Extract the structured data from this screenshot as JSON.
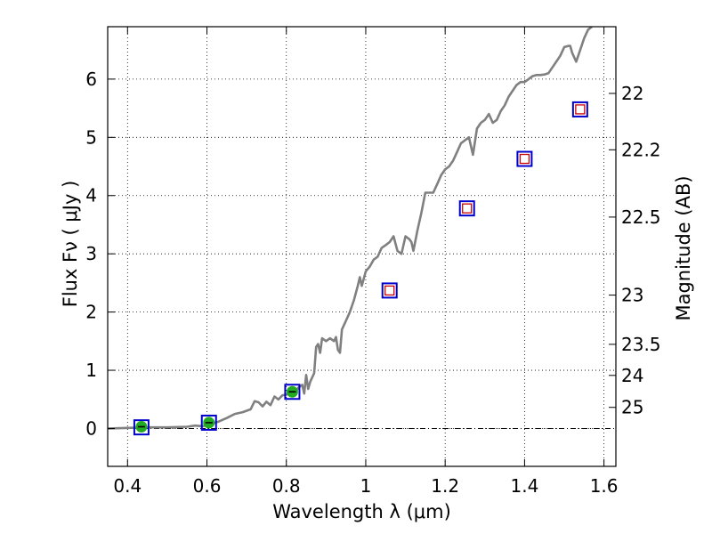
{
  "chart_data": {
    "type": "line",
    "title": "",
    "xlabel": "Wavelength  λ (μm)",
    "ylabel": "Flux  Fν  ( μJy )",
    "y2label": "Magnitude (AB)",
    "xlim": [
      0.35,
      1.63
    ],
    "ylim": [
      -0.65,
      6.9
    ],
    "grid": true,
    "x_ticks": [
      {
        "value": 0.4,
        "label": "0.4"
      },
      {
        "value": 0.6,
        "label": "0.6"
      },
      {
        "value": 0.8,
        "label": "0.8"
      },
      {
        "value": 1.0,
        "label": "1"
      },
      {
        "value": 1.2,
        "label": "1.2"
      },
      {
        "value": 1.4,
        "label": "1.4"
      },
      {
        "value": 1.6,
        "label": "1.6"
      }
    ],
    "y_ticks": [
      {
        "value": 0,
        "label": "0"
      },
      {
        "value": 1,
        "label": "1"
      },
      {
        "value": 2,
        "label": "2"
      },
      {
        "value": 3,
        "label": "3"
      },
      {
        "value": 4,
        "label": "4"
      },
      {
        "value": 5,
        "label": "5"
      },
      {
        "value": 6,
        "label": "6"
      }
    ],
    "y2_ticks": [
      {
        "value": 22,
        "label": "22"
      },
      {
        "value": 22.2,
        "label": "22.2"
      },
      {
        "value": 22.5,
        "label": "22.5"
      },
      {
        "value": 23,
        "label": "23"
      },
      {
        "value": 23.5,
        "label": "23.5"
      },
      {
        "value": 24,
        "label": "24"
      },
      {
        "value": 25,
        "label": "25"
      }
    ],
    "series": [
      {
        "kind": "spectrum",
        "color": "#808080",
        "points": [
          [
            0.35,
            0.0
          ],
          [
            0.4,
            0.01
          ],
          [
            0.45,
            0.02
          ],
          [
            0.5,
            0.02
          ],
          [
            0.55,
            0.03
          ],
          [
            0.57,
            0.05
          ],
          [
            0.59,
            0.04
          ],
          [
            0.61,
            0.08
          ],
          [
            0.63,
            0.12
          ],
          [
            0.65,
            0.18
          ],
          [
            0.67,
            0.25
          ],
          [
            0.69,
            0.28
          ],
          [
            0.71,
            0.33
          ],
          [
            0.72,
            0.47
          ],
          [
            0.73,
            0.45
          ],
          [
            0.74,
            0.38
          ],
          [
            0.75,
            0.46
          ],
          [
            0.76,
            0.4
          ],
          [
            0.77,
            0.55
          ],
          [
            0.78,
            0.5
          ],
          [
            0.79,
            0.57
          ],
          [
            0.8,
            0.58
          ],
          [
            0.81,
            0.62
          ],
          [
            0.82,
            0.6
          ],
          [
            0.83,
            0.7
          ],
          [
            0.84,
            0.75
          ],
          [
            0.845,
            0.6
          ],
          [
            0.85,
            0.92
          ],
          [
            0.855,
            0.68
          ],
          [
            0.86,
            0.8
          ],
          [
            0.87,
            0.95
          ],
          [
            0.875,
            1.4
          ],
          [
            0.88,
            1.45
          ],
          [
            0.885,
            1.3
          ],
          [
            0.89,
            1.55
          ],
          [
            0.9,
            1.5
          ],
          [
            0.91,
            1.55
          ],
          [
            0.92,
            1.5
          ],
          [
            0.925,
            1.57
          ],
          [
            0.93,
            1.35
          ],
          [
            0.935,
            1.3
          ],
          [
            0.94,
            1.7
          ],
          [
            0.95,
            1.85
          ],
          [
            0.96,
            2.0
          ],
          [
            0.97,
            2.2
          ],
          [
            0.98,
            2.45
          ],
          [
            0.985,
            2.6
          ],
          [
            0.99,
            2.45
          ],
          [
            1.0,
            2.7
          ],
          [
            1.01,
            2.78
          ],
          [
            1.02,
            2.9
          ],
          [
            1.03,
            2.95
          ],
          [
            1.04,
            3.1
          ],
          [
            1.05,
            3.15
          ],
          [
            1.06,
            3.2
          ],
          [
            1.07,
            3.3
          ],
          [
            1.08,
            3.05
          ],
          [
            1.09,
            3.0
          ],
          [
            1.1,
            3.3
          ],
          [
            1.11,
            3.25
          ],
          [
            1.115,
            3.2
          ],
          [
            1.12,
            3.05
          ],
          [
            1.13,
            3.4
          ],
          [
            1.14,
            3.7
          ],
          [
            1.15,
            4.05
          ],
          [
            1.16,
            4.05
          ],
          [
            1.17,
            4.05
          ],
          [
            1.18,
            4.2
          ],
          [
            1.19,
            4.35
          ],
          [
            1.2,
            4.45
          ],
          [
            1.21,
            4.5
          ],
          [
            1.22,
            4.6
          ],
          [
            1.23,
            4.75
          ],
          [
            1.24,
            4.9
          ],
          [
            1.25,
            4.95
          ],
          [
            1.26,
            5.0
          ],
          [
            1.27,
            4.7
          ],
          [
            1.28,
            5.15
          ],
          [
            1.29,
            5.25
          ],
          [
            1.3,
            5.3
          ],
          [
            1.31,
            5.4
          ],
          [
            1.32,
            5.25
          ],
          [
            1.33,
            5.3
          ],
          [
            1.34,
            5.45
          ],
          [
            1.35,
            5.55
          ],
          [
            1.36,
            5.7
          ],
          [
            1.37,
            5.8
          ],
          [
            1.38,
            5.9
          ],
          [
            1.39,
            5.95
          ],
          [
            1.4,
            5.95
          ],
          [
            1.41,
            6.0
          ],
          [
            1.42,
            6.05
          ],
          [
            1.43,
            6.07
          ],
          [
            1.44,
            6.07
          ],
          [
            1.45,
            6.08
          ],
          [
            1.46,
            6.1
          ],
          [
            1.47,
            6.2
          ],
          [
            1.48,
            6.3
          ],
          [
            1.49,
            6.4
          ],
          [
            1.5,
            6.55
          ],
          [
            1.51,
            6.57
          ],
          [
            1.515,
            6.57
          ],
          [
            1.52,
            6.45
          ],
          [
            1.53,
            6.3
          ],
          [
            1.54,
            6.5
          ],
          [
            1.55,
            6.7
          ],
          [
            1.56,
            6.85
          ],
          [
            1.57,
            6.95
          ]
        ]
      },
      {
        "kind": "model_photometry",
        "marker": "open-square",
        "color": "#0000cc",
        "points": [
          [
            0.435,
            0.02
          ],
          [
            0.605,
            0.1
          ],
          [
            0.815,
            0.63
          ],
          [
            1.06,
            2.37
          ],
          [
            1.255,
            3.78
          ],
          [
            1.4,
            4.63
          ],
          [
            1.54,
            5.48
          ]
        ]
      },
      {
        "kind": "model_photometry_inner",
        "marker": "open-square-small",
        "color": "#cc0000",
        "points": [
          [
            1.06,
            2.37
          ],
          [
            1.255,
            3.78
          ],
          [
            1.4,
            4.63
          ],
          [
            1.54,
            5.48
          ]
        ]
      },
      {
        "kind": "observed_photometry",
        "marker": "filled-circle",
        "color": "#22aa22",
        "points": [
          [
            0.435,
            0.03
          ],
          [
            0.605,
            0.1
          ],
          [
            0.815,
            0.63
          ]
        ]
      }
    ]
  }
}
